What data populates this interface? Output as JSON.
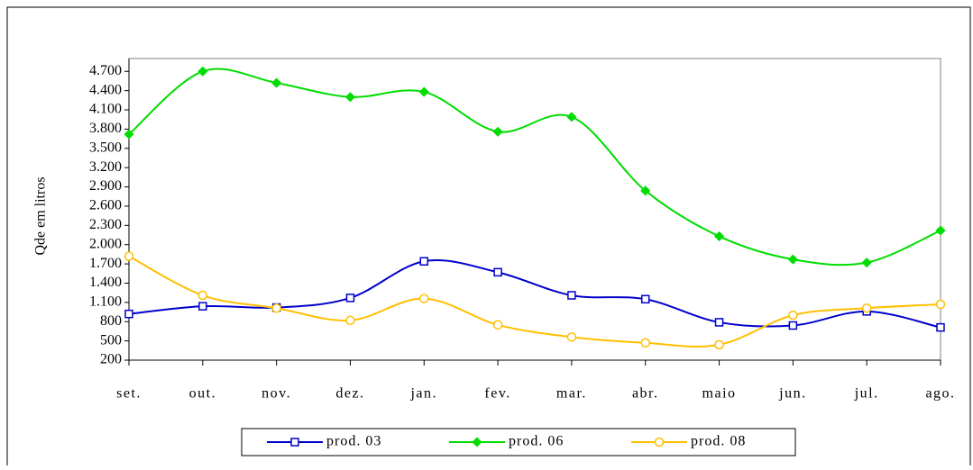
{
  "chart_data": {
    "type": "line",
    "y_label": "Qde em litros",
    "categories": [
      "set.",
      "out.",
      "nov.",
      "dez.",
      "jan.",
      "fev.",
      "mar.",
      "abr.",
      "maio",
      "jun.",
      "jul.",
      "ago."
    ],
    "series": [
      {
        "name": "prod. 03",
        "color": "#0000cc",
        "marker": "square",
        "values": [
          920,
          1040,
          1020,
          1170,
          1740,
          1570,
          1210,
          1150,
          790,
          740,
          960,
          710
        ]
      },
      {
        "name": "prod. 06",
        "color": "#00dd00",
        "marker": "diamond",
        "values": [
          3720,
          4700,
          4520,
          4300,
          4380,
          3760,
          3990,
          2840,
          2130,
          1770,
          1720,
          2220
        ]
      },
      {
        "name": "prod. 08",
        "color": "#ffbf00",
        "marker": "circle",
        "values": [
          1820,
          1210,
          1010,
          820,
          1160,
          750,
          560,
          470,
          440,
          900,
          1010,
          1070
        ]
      }
    ],
    "ylim": [
      200,
      4900
    ],
    "yticks": [
      200,
      500,
      800,
      {
        "value": 1100,
        "label": "1.100"
      },
      {
        "value": 1400,
        "label": "1.400"
      },
      {
        "value": 1700,
        "label": "1.700"
      },
      {
        "value": 2000,
        "label": "2.000"
      },
      {
        "value": 2300,
        "label": "2.300"
      },
      {
        "value": 2600,
        "label": "2.600"
      },
      {
        "value": 2900,
        "label": "2.900"
      },
      {
        "value": 3200,
        "label": "3.200"
      },
      {
        "value": 3500,
        "label": "3.500"
      },
      {
        "value": 3800,
        "label": "3.800"
      },
      {
        "value": 4100,
        "label": "4.100"
      },
      {
        "value": 4400,
        "label": "4.400"
      },
      {
        "value": 4700,
        "label": "4.700"
      }
    ],
    "grid": false,
    "smooth": true,
    "legend": "bottom"
  }
}
